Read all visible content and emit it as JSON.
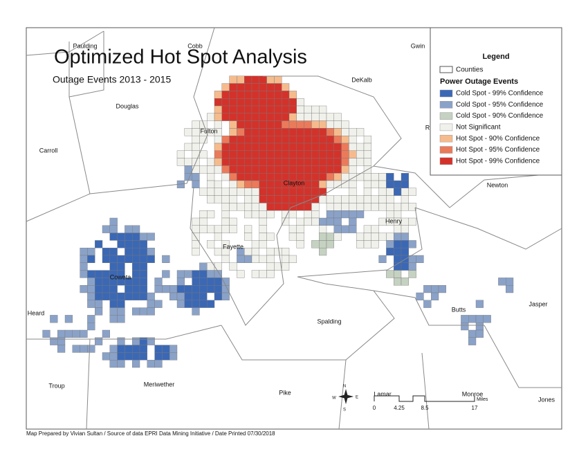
{
  "header": {
    "title": "Optimized Hot Spot Analysis",
    "subtitle": "Outage Events 2013 - 2015"
  },
  "legend": {
    "title": "Legend",
    "counties": "Counties",
    "group_title": "Power Outage Events",
    "items": [
      {
        "label": "Cold Spot - 99% Confidence",
        "color": "#3b68b5"
      },
      {
        "label": "Cold Spot - 95% Confidence",
        "color": "#8aa2c8"
      },
      {
        "label": "Cold Spot - 90% Confidence",
        "color": "#c5d1c1"
      },
      {
        "label": "Not Significant",
        "color": "#f1f1ec"
      },
      {
        "label": "Hot Spot - 90% Confidence",
        "color": "#f6bb8c"
      },
      {
        "label": "Hot Spot - 95% Confidence",
        "color": "#eb7a5a"
      },
      {
        "label": "Hot Spot - 99% Confidence",
        "color": "#d3322b"
      }
    ]
  },
  "counties": [
    "Paulding",
    "Cobb",
    "Gwin",
    "DeKalb",
    "Douglas",
    "Fulton",
    "Carroll",
    "Clayton",
    "R",
    "Newton",
    "Henry",
    "Fayette",
    "Coweta",
    "Heard",
    "Spalding",
    "Butts",
    "Jasper",
    "Troup",
    "Meriwether",
    "Pike",
    "Lamar",
    "Monroe",
    "Jones"
  ],
  "north_arrow": {
    "n": "N",
    "s": "S",
    "e": "E",
    "w": "W"
  },
  "scale_bar": {
    "labels": [
      "0",
      "4.25",
      "8.5",
      "17"
    ],
    "unit": "Miles"
  },
  "footer": "Map Prepared by Vivian Sultan / Source of data EPRI Data Mining Initiative / Date Printed 07/30/2018"
}
